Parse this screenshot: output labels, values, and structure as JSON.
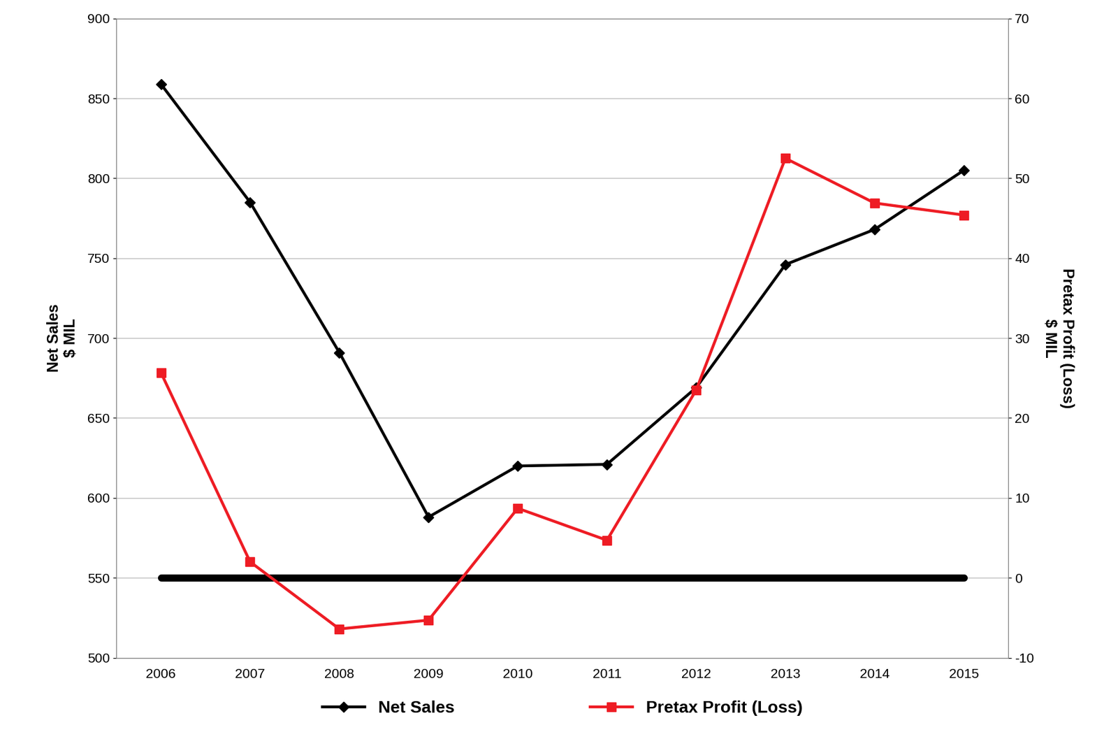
{
  "chart_data": {
    "type": "line",
    "categories": [
      "2006",
      "2007",
      "2008",
      "2009",
      "2010",
      "2011",
      "2012",
      "2013",
      "2014",
      "2015"
    ],
    "series": [
      {
        "name": "Net Sales",
        "color": "#000000",
        "marker": "diamond",
        "line_style": "solid",
        "values": [
          859,
          785,
          691,
          588,
          620,
          621,
          669,
          746,
          768,
          805
        ]
      },
      {
        "name": "Pretax Profit (Loss)",
        "color": "#ee1c24",
        "marker": "square",
        "line_style": "solid",
        "axis": "y2",
        "values": [
          25.7,
          2.0,
          -6.4,
          -5.3,
          8.7,
          4.7,
          23.5,
          52.5,
          46.9,
          45.4
        ]
      }
    ],
    "y_label": "Net Sales",
    "y_unit": "$ MIL",
    "y2_label": "Pretax Profit (Loss)",
    "y2_unit": "$ MIL",
    "ylim": [
      500,
      900
    ],
    "yticks": [
      500,
      550,
      600,
      650,
      700,
      750,
      800,
      850,
      900
    ],
    "y2lim": [
      -10,
      70
    ],
    "y2ticks": [
      -10,
      0,
      10,
      20,
      30,
      40,
      50,
      60,
      70
    ],
    "grid": true,
    "legend": "lower center"
  }
}
